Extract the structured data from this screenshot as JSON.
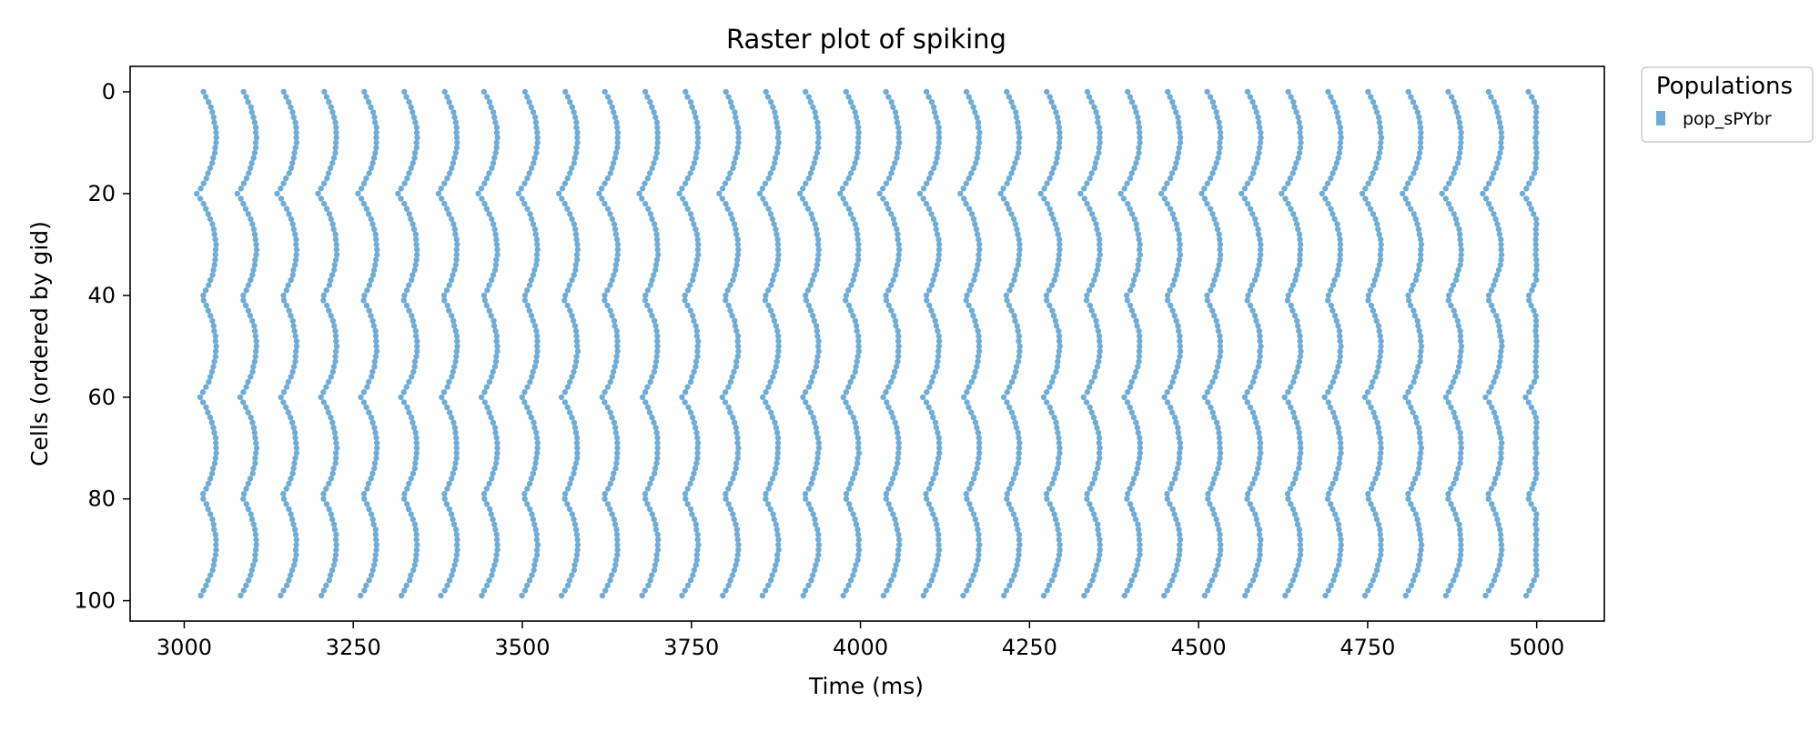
{
  "chart_data": {
    "type": "scatter",
    "title": "Raster plot of spiking",
    "xlabel": "Time (ms)",
    "ylabel": "Cells (ordered by gid)",
    "xlim": [
      2920,
      5100
    ],
    "ylim": [
      104,
      -5
    ],
    "y_inverted": true,
    "xticks": [
      3000,
      3250,
      3500,
      3750,
      4000,
      4250,
      4500,
      4750,
      5000
    ],
    "yticks": [
      0,
      20,
      40,
      60,
      80,
      100
    ],
    "grid": false,
    "legend": {
      "title": "Populations",
      "placement": "outside-upper-right",
      "entries": [
        "pop_sPYbr"
      ]
    },
    "colors": {
      "marker": "#6fadd6",
      "axes": "#000000",
      "legend_frame": "#cccccc"
    },
    "series": [
      {
        "name": "pop_sPYbr",
        "cells": 100,
        "t_start": 3000,
        "t_end": 5000,
        "burst_period_ms": 59.4,
        "first_burst_ms": 3005,
        "edge_delay_ms": 14,
        "wave_delay_ms": 28,
        "wave_center_cells": [
          9,
          31,
          50,
          70,
          89
        ]
      }
    ]
  }
}
